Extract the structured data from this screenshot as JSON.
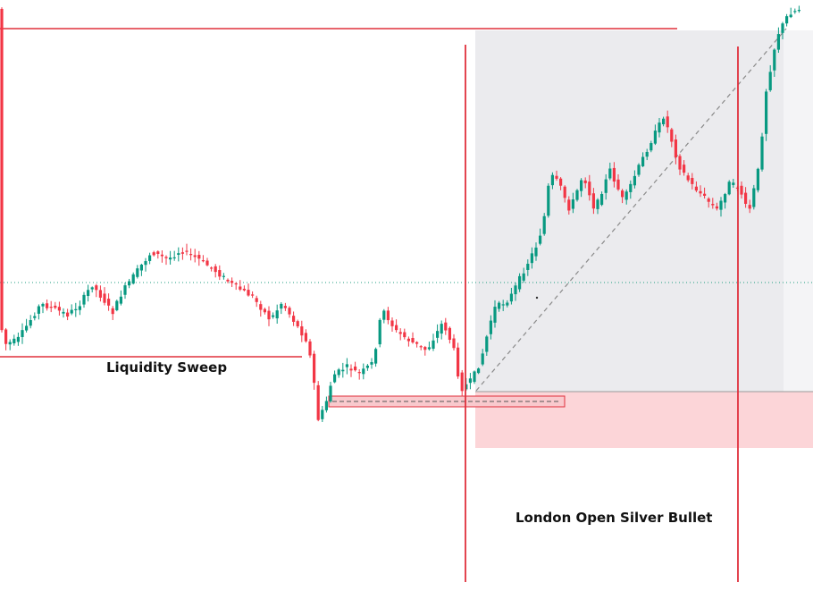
{
  "annotations": {
    "liquidity_sweep": "Liquidity Sweep",
    "killzone_label": "London Open Silver Bullet"
  },
  "colors": {
    "bull": "#089981",
    "bear": "#f23645",
    "level_line": "#e0303c",
    "dotted_level": "#1f9e80",
    "zone_gray": "#ebebee",
    "zone_pink": "#fcd5d8",
    "trend": "#8a8a8a"
  },
  "chart_data": {
    "type": "candlestick",
    "price_range": [
      0,
      661
    ],
    "dotted_level_price": 345,
    "top_level_price": 629,
    "liquidity_low_price": 262,
    "candles": []
  }
}
